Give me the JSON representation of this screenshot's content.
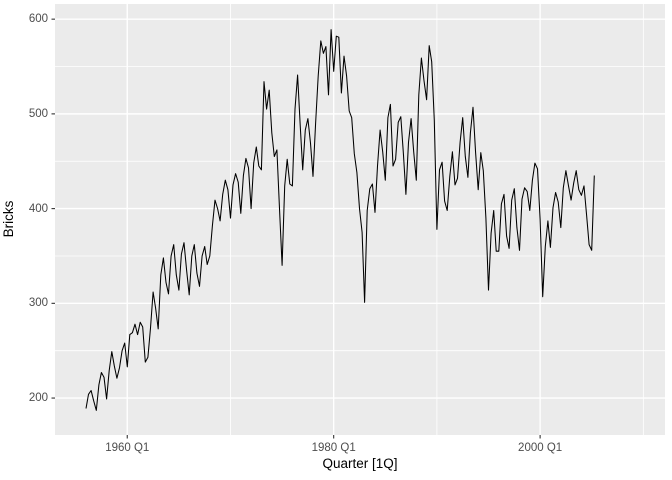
{
  "chart_data": {
    "type": "line",
    "title": "",
    "xlabel": "Quarter [1Q]",
    "ylabel": "Bricks",
    "legend": "none",
    "grid": true,
    "xlim": [
      1953.0,
      2012.1
    ],
    "ylim": [
      161,
      616
    ],
    "x_major_ticks": [
      {
        "value": 1960,
        "label": "1960 Q1"
      },
      {
        "value": 1980,
        "label": "1980 Q1"
      },
      {
        "value": 2000,
        "label": "2000 Q1"
      }
    ],
    "x_minor_ticks": [
      1970,
      1990,
      2010
    ],
    "y_major_ticks": [
      {
        "value": 200,
        "label": "200"
      },
      {
        "value": 300,
        "label": "300"
      },
      {
        "value": 400,
        "label": "400"
      },
      {
        "value": 500,
        "label": "500"
      },
      {
        "value": 600,
        "label": "600"
      }
    ],
    "y_minor_ticks": [
      250,
      350,
      450,
      550
    ],
    "colors": {
      "panel_background": "#EBEBEB",
      "gridline": "#FFFFFF",
      "line": "#000000",
      "tick_label": "#4D4D4D",
      "axis_title": "#000000",
      "tick_mark": "#333333",
      "outer_background": "#FFFFFF"
    },
    "series": {
      "name": "Bricks",
      "start": 1956.0,
      "step": 0.25,
      "unit_note": "quarterly values read from plot",
      "values": [
        189,
        204,
        208,
        197,
        187,
        214,
        227,
        222,
        199,
        229,
        249,
        234,
        221,
        232,
        250,
        258,
        233,
        267,
        269,
        278,
        267,
        280,
        275,
        238,
        243,
        274,
        312,
        295,
        273,
        330,
        348,
        322,
        310,
        350,
        362,
        330,
        314,
        352,
        364,
        335,
        309,
        350,
        362,
        332,
        318,
        350,
        360,
        341,
        350,
        382,
        409,
        400,
        387,
        415,
        430,
        420,
        390,
        425,
        437,
        428,
        395,
        435,
        453,
        443,
        400,
        448,
        465,
        445,
        441,
        534,
        505,
        525,
        480,
        455,
        462,
        400,
        340,
        424,
        452,
        426,
        424,
        505,
        541,
        490,
        441,
        483,
        495,
        469,
        434,
        490,
        540,
        577,
        564,
        571,
        520,
        589,
        545,
        582,
        581,
        522,
        561,
        540,
        503,
        496,
        458,
        438,
        400,
        375,
        301,
        398,
        421,
        426,
        396,
        445,
        483,
        460,
        430,
        496,
        510,
        445,
        452,
        491,
        497,
        458,
        415,
        470,
        495,
        460,
        430,
        520,
        559,
        535,
        515,
        572,
        555,
        493,
        378,
        441,
        449,
        408,
        398,
        434,
        460,
        425,
        432,
        470,
        496,
        455,
        433,
        480,
        507,
        459,
        420,
        459,
        440,
        390,
        314,
        374,
        398,
        355,
        355,
        405,
        415,
        371,
        358,
        409,
        421,
        380,
        356,
        410,
        422,
        418,
        398,
        430,
        448,
        442,
        389,
        307,
        360,
        387,
        359,
        401,
        417,
        407,
        380,
        422,
        440,
        424,
        409,
        427,
        440,
        420,
        414,
        424,
        393,
        362,
        356,
        435
      ]
    }
  }
}
